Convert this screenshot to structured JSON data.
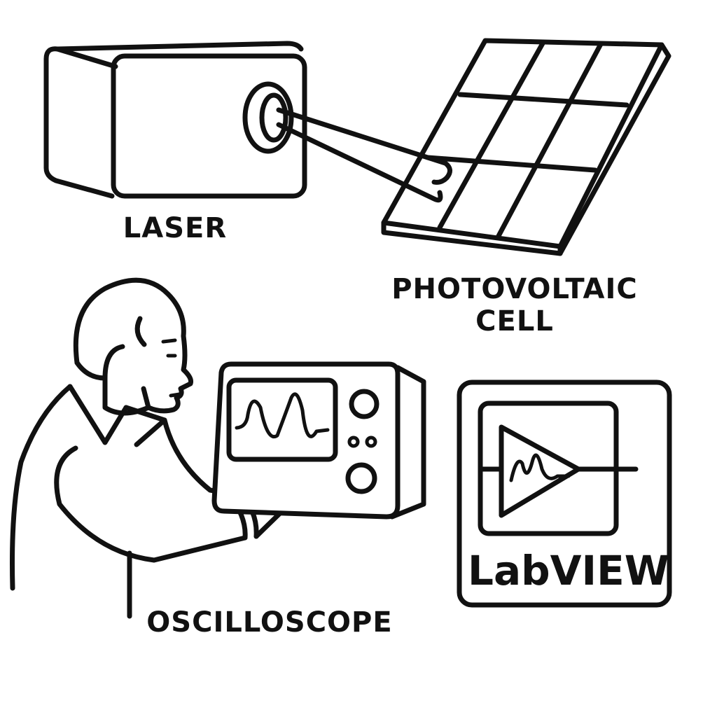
{
  "labels": {
    "laser": "LASER",
    "photovoltaic_line1": "PHOTOVOLTAIC",
    "photovoltaic_line2": "CELL",
    "oscilloscope": "OSCILLOSCOPE",
    "labview": "LabVIEW"
  },
  "icons": {
    "laser": "laser-icon",
    "beam": "laser-beam-icon",
    "photovoltaic_cell": "solar-panel-icon",
    "person": "person-icon",
    "oscilloscope": "oscilloscope-icon",
    "labview_logo": "amplifier-waveform-icon"
  },
  "colors": {
    "ink": "#111111",
    "background": "#ffffff"
  }
}
